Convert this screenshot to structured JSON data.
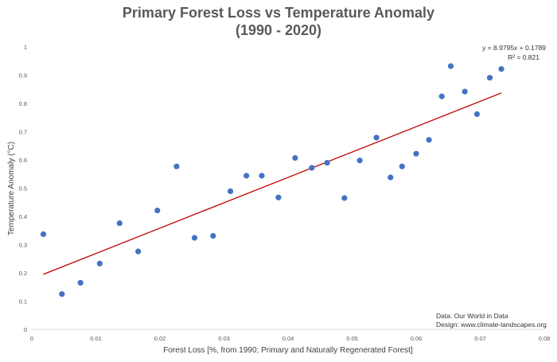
{
  "chart_data": {
    "type": "scatter",
    "title": "Primary Forest Loss vs Temperature Anomaly",
    "subtitle": "(1990 - 2020)",
    "xlabel": "Forest Loss [%, from 1990; Primary and Naturally Regenerated Forest]",
    "ylabel": "Temperature Anomaly (°C)",
    "xlim": [
      0,
      0.08
    ],
    "ylim": [
      0,
      1
    ],
    "xticks": [
      "0",
      "0.01",
      "0.02",
      "0.03",
      "0.04",
      "0.05",
      "0.06",
      "0.07",
      "0.08"
    ],
    "yticks": [
      "0",
      "0.1",
      "0.2",
      "0.3",
      "0.4",
      "0.5",
      "0.6",
      "0.7",
      "0.8",
      "0.9",
      "1"
    ],
    "grid": false,
    "point_color": "#4472C4",
    "trend_color": "#C00000",
    "points": [
      {
        "x": 0.0018,
        "y": 0.337
      },
      {
        "x": 0.0047,
        "y": 0.125
      },
      {
        "x": 0.0076,
        "y": 0.165
      },
      {
        "x": 0.0106,
        "y": 0.233
      },
      {
        "x": 0.0137,
        "y": 0.376
      },
      {
        "x": 0.0166,
        "y": 0.276
      },
      {
        "x": 0.0196,
        "y": 0.421
      },
      {
        "x": 0.0226,
        "y": 0.577
      },
      {
        "x": 0.0254,
        "y": 0.324
      },
      {
        "x": 0.0283,
        "y": 0.331
      },
      {
        "x": 0.031,
        "y": 0.489
      },
      {
        "x": 0.0335,
        "y": 0.544
      },
      {
        "x": 0.0359,
        "y": 0.544
      },
      {
        "x": 0.0385,
        "y": 0.467
      },
      {
        "x": 0.0411,
        "y": 0.607
      },
      {
        "x": 0.0437,
        "y": 0.572
      },
      {
        "x": 0.0461,
        "y": 0.59
      },
      {
        "x": 0.0488,
        "y": 0.465
      },
      {
        "x": 0.0512,
        "y": 0.598
      },
      {
        "x": 0.0538,
        "y": 0.679
      },
      {
        "x": 0.056,
        "y": 0.538
      },
      {
        "x": 0.0578,
        "y": 0.577
      },
      {
        "x": 0.06,
        "y": 0.622
      },
      {
        "x": 0.062,
        "y": 0.671
      },
      {
        "x": 0.064,
        "y": 0.825
      },
      {
        "x": 0.0654,
        "y": 0.932
      },
      {
        "x": 0.0676,
        "y": 0.842
      },
      {
        "x": 0.0695,
        "y": 0.762
      },
      {
        "x": 0.0715,
        "y": 0.891
      },
      {
        "x": 0.0733,
        "y": 0.922
      }
    ],
    "trendline": {
      "equation": "y = 8.9795x + 0.1789",
      "r2": "R² = 0.821",
      "slope": 8.9795,
      "intercept": 0.1789,
      "x_start": 0.0018,
      "x_end": 0.0733
    },
    "annotations": {
      "source": "Data: Our World in Data",
      "design": "Design: www.climate-landscapes.org"
    }
  }
}
